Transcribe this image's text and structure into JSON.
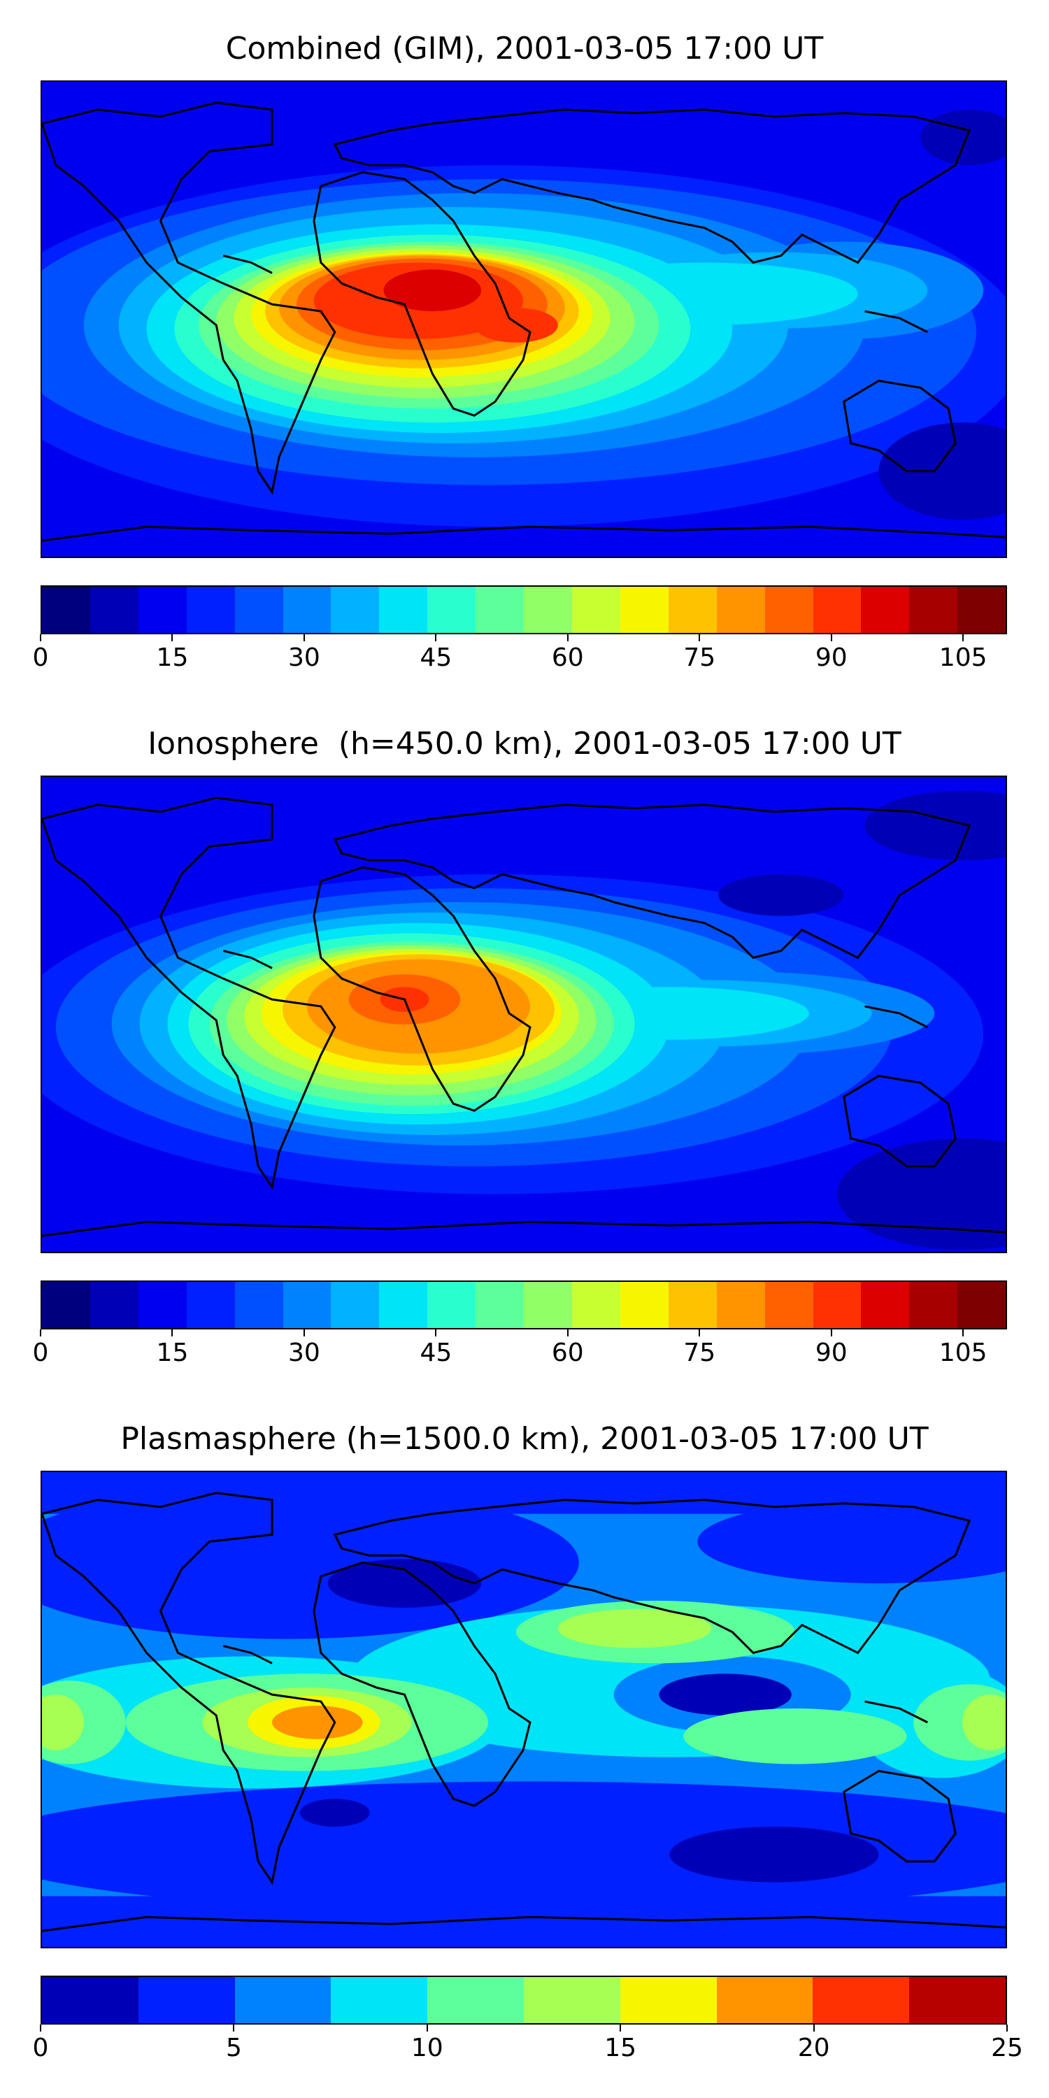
{
  "panels": [
    {
      "title": "Combined (GIM), 2001-03-05 17:00 UT",
      "colorbar": {
        "min": 0,
        "max": 110,
        "ticks": [
          "0",
          "15",
          "30",
          "45",
          "60",
          "75",
          "90",
          "105"
        ],
        "tick_values": [
          0,
          15,
          30,
          45,
          60,
          75,
          90,
          105
        ],
        "colors": [
          "#00007f",
          "#0000b7",
          "#0000f1",
          "#0020ff",
          "#0050ff",
          "#0082ff",
          "#00b2ff",
          "#00e4f8",
          "#29ffce",
          "#5dff9a",
          "#91ff66",
          "#c7ff30",
          "#f8f500",
          "#ffc200",
          "#ff9400",
          "#ff6100",
          "#ff3100",
          "#dd0000",
          "#a70000",
          "#7f0000"
        ]
      }
    },
    {
      "title": "Ionosphere  (h=450.0 km), 2001-03-05 17:00 UT",
      "colorbar": {
        "min": 0,
        "max": 110,
        "ticks": [
          "0",
          "15",
          "30",
          "45",
          "60",
          "75",
          "90",
          "105"
        ],
        "tick_values": [
          0,
          15,
          30,
          45,
          60,
          75,
          90,
          105
        ],
        "colors": [
          "#00007f",
          "#0000b7",
          "#0000f1",
          "#0020ff",
          "#0050ff",
          "#0082ff",
          "#00b2ff",
          "#00e4f8",
          "#29ffce",
          "#5dff9a",
          "#91ff66",
          "#c7ff30",
          "#f8f500",
          "#ffc200",
          "#ff9400",
          "#ff6100",
          "#ff3100",
          "#dd0000",
          "#a70000",
          "#7f0000"
        ]
      }
    },
    {
      "title": "Plasmasphere (h=1500.0 km), 2001-03-05 17:00 UT",
      "colorbar": {
        "min": 0,
        "max": 25,
        "ticks": [
          "0",
          "5",
          "10",
          "15",
          "20",
          "25"
        ],
        "tick_values": [
          0,
          5,
          10,
          15,
          20,
          25
        ],
        "colors": [
          "#0000b7",
          "#0020ff",
          "#0082ff",
          "#00e4f8",
          "#5dff9a",
          "#a6ff52",
          "#f8f500",
          "#ff9400",
          "#ff3100",
          "#b70000"
        ]
      }
    }
  ]
}
